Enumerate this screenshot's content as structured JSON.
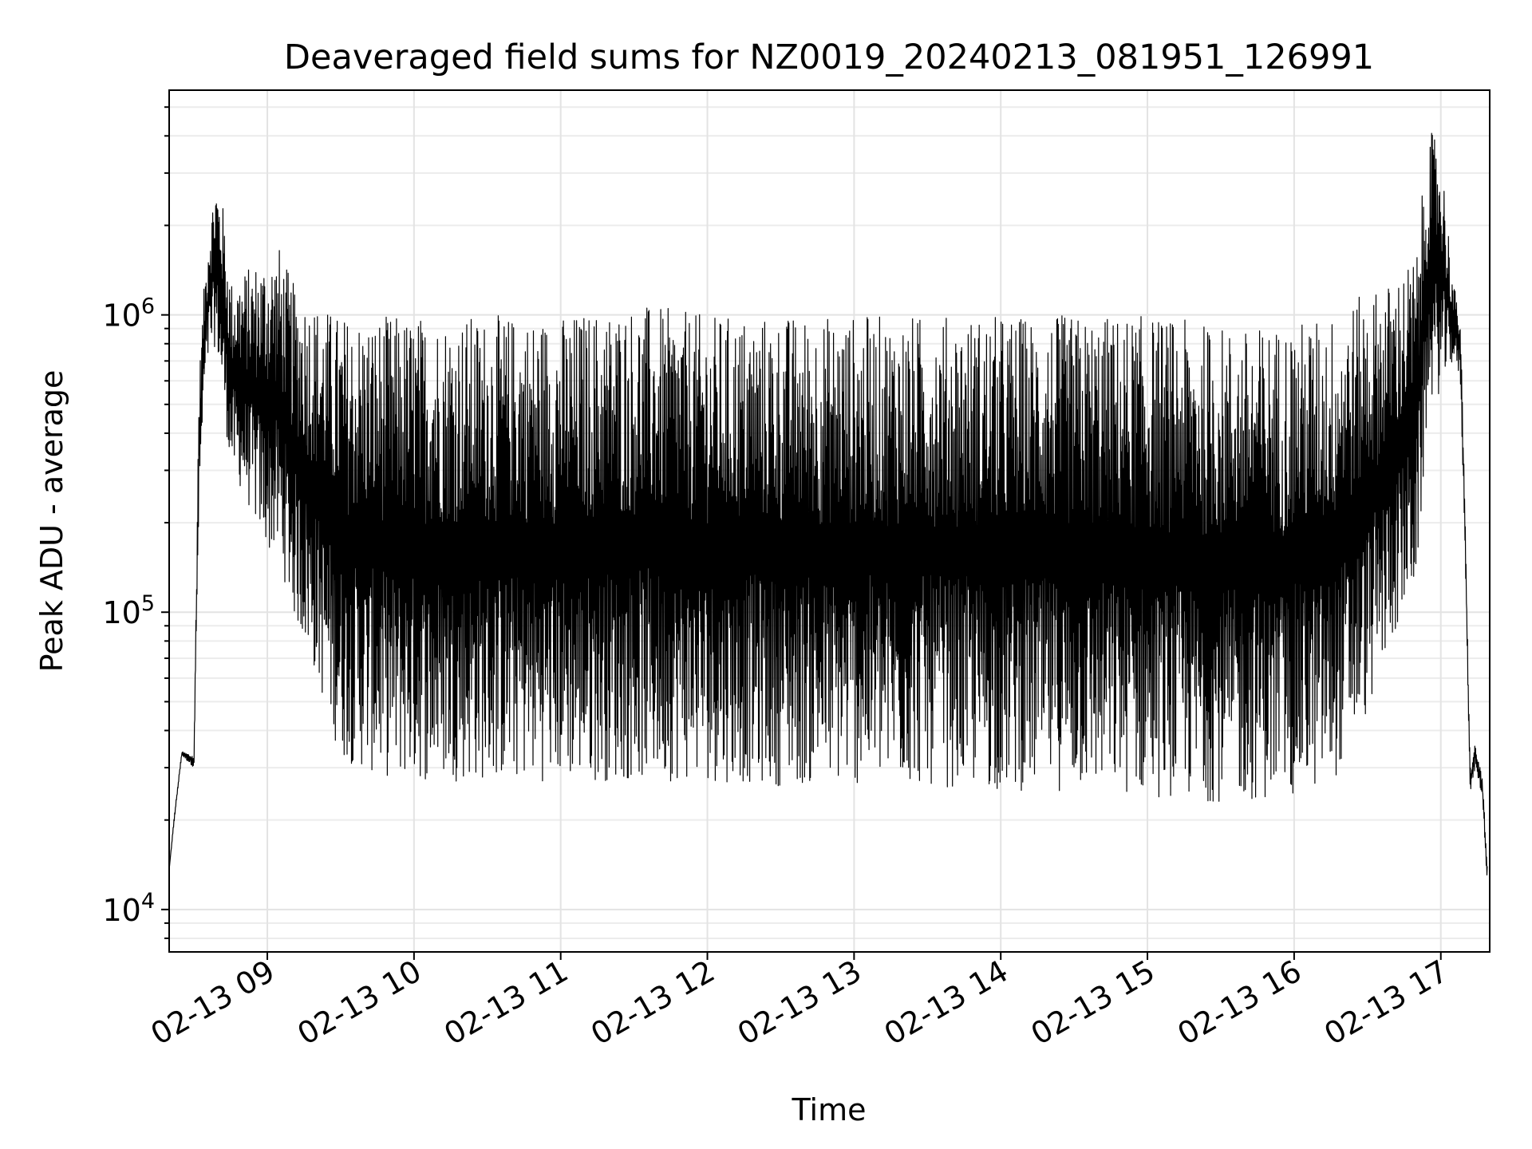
{
  "chart_data": {
    "type": "line",
    "title": "Deaveraged field sums for NZ0019_20240213_081951_126991",
    "xlabel": "Time",
    "ylabel": "Peak ADU - average",
    "yscale": "log",
    "ylim": [
      7200,
      5700000
    ],
    "xlim": [
      "2024-02-13 08:19:51",
      "2024-02-13 17:20:00"
    ],
    "grid": true,
    "line_color": "#000000",
    "x_ticks": [
      {
        "value": "2024-02-13 09:00",
        "label": "02-13 09"
      },
      {
        "value": "2024-02-13 10:00",
        "label": "02-13 10"
      },
      {
        "value": "2024-02-13 11:00",
        "label": "02-13 11"
      },
      {
        "value": "2024-02-13 12:00",
        "label": "02-13 12"
      },
      {
        "value": "2024-02-13 13:00",
        "label": "02-13 13"
      },
      {
        "value": "2024-02-13 14:00",
        "label": "02-13 14"
      },
      {
        "value": "2024-02-13 15:00",
        "label": "02-13 15"
      },
      {
        "value": "2024-02-13 16:00",
        "label": "02-13 16"
      },
      {
        "value": "2024-02-13 17:00",
        "label": "02-13 17"
      }
    ],
    "y_ticks": [
      {
        "value": 10000,
        "base": "10",
        "exp": "4"
      },
      {
        "value": 100000,
        "base": "10",
        "exp": "5"
      },
      {
        "value": 1000000,
        "base": "10",
        "exp": "6"
      }
    ],
    "series": [
      {
        "x": [
          "2024-02-13 08:20",
          "2024-02-13 08:22",
          "2024-02-13 08:25",
          "2024-02-13 08:30",
          "2024-02-13 08:32",
          "2024-02-13 08:34",
          "2024-02-13 08:36",
          "2024-02-13 08:39",
          "2024-02-13 08:42",
          "2024-02-13 08:45",
          "2024-02-13 08:50",
          "2024-02-13 08:55",
          "2024-02-13 09:00",
          "2024-02-13 09:05",
          "2024-02-13 09:10",
          "2024-02-13 09:20",
          "2024-02-13 09:30",
          "2024-02-13 09:45",
          "2024-02-13 10:00",
          "2024-02-13 10:30",
          "2024-02-13 11:00",
          "2024-02-13 11:30",
          "2024-02-13 12:00",
          "2024-02-13 12:30",
          "2024-02-13 13:00",
          "2024-02-13 13:30",
          "2024-02-13 14:00",
          "2024-02-13 14:30",
          "2024-02-13 15:00",
          "2024-02-13 15:20",
          "2024-02-13 15:40",
          "2024-02-13 16:00",
          "2024-02-13 16:15",
          "2024-02-13 16:30",
          "2024-02-13 16:40",
          "2024-02-13 16:50",
          "2024-02-13 16:55",
          "2024-02-13 17:00",
          "2024-02-13 17:05",
          "2024-02-13 17:08",
          "2024-02-13 17:10",
          "2024-02-13 17:12",
          "2024-02-13 17:14",
          "2024-02-13 17:17",
          "2024-02-13 17:19"
        ],
        "high": [
          14000,
          21000,
          34000,
          33000,
          600000,
          1200000,
          2000000,
          2900000,
          2300000,
          1300000,
          1400000,
          1500000,
          1600000,
          1700000,
          1300000,
          1100000,
          1000000,
          1000000,
          1000000,
          1000000,
          1000000,
          1100000,
          1000000,
          1000000,
          1000000,
          1000000,
          1000000,
          1000000,
          1000000,
          950000,
          900000,
          950000,
          1000000,
          1200000,
          1300000,
          1600000,
          4200000,
          3800000,
          1300000,
          1000000,
          200000,
          30000,
          36000,
          28000,
          14000
        ],
        "low": [
          14000,
          20000,
          33000,
          30000,
          200000,
          500000,
          700000,
          800000,
          500000,
          300000,
          250000,
          200000,
          160000,
          150000,
          100000,
          60000,
          32000,
          28000,
          27000,
          27000,
          27000,
          27000,
          27000,
          26000,
          26000,
          26000,
          25000,
          25000,
          24000,
          23000,
          23000,
          24000,
          26000,
          45000,
          80000,
          120000,
          500000,
          550000,
          700000,
          600000,
          150000,
          24000,
          30000,
          24000,
          12000
        ]
      }
    ]
  }
}
